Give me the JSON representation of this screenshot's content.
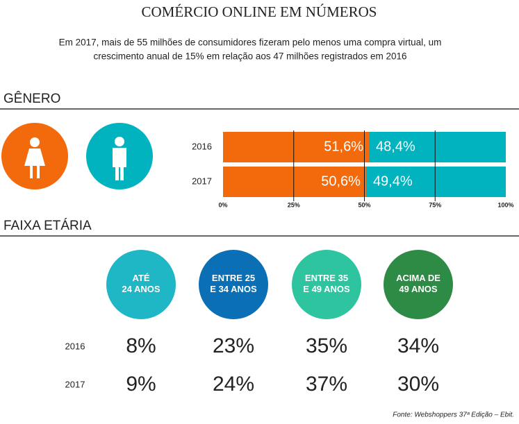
{
  "header": {
    "title": "COMÉRCIO ONLINE EM NÚMEROS",
    "subtitle": [
      "Em 2017, mais de 55 milhões de consumidores fizeram pelo menos uma compra virtual, um",
      "crescimento anual de 15% em relação aos 47 milhões registrados em 2016"
    ]
  },
  "sections": [
    "GÊNERO",
    "FAIXA ETÁRIA"
  ],
  "chart_data": {
    "type": "bar",
    "orientation": "horizontal",
    "stacked": true,
    "categories": [
      "2016",
      "2017"
    ],
    "series": [
      {
        "color": "#f26a0c",
        "values": [
          51.6,
          50.6
        ],
        "value_labels": [
          "51,6%",
          "50,6%"
        ]
      },
      {
        "color": "#00b3bf",
        "values": [
          48.4,
          49.4
        ],
        "value_labels": [
          "48,4%",
          "49,4%"
        ]
      }
    ],
    "xlim": [
      0,
      100
    ],
    "xticks": [
      {
        "value": 0,
        "label": "0%"
      },
      {
        "value": 25,
        "label": "25%"
      },
      {
        "value": 50,
        "label": "50%"
      },
      {
        "value": 75,
        "label": "75%"
      },
      {
        "value": 100,
        "label": "100%"
      }
    ],
    "grid": true
  },
  "table": {
    "columns": [
      {
        "lines": [
          "ATÉ",
          "24 ANOS"
        ],
        "color": "#1fb6c6"
      },
      {
        "lines": [
          "ENTRE 25",
          "E 34 ANOS"
        ],
        "color": "#0a6fb5"
      },
      {
        "lines": [
          "ENTRE 35",
          "E 49 ANOS"
        ],
        "color": "#2ec4a0"
      },
      {
        "lines": [
          "ACIMA DE",
          "49 ANOS"
        ],
        "color": "#2e8b45"
      }
    ],
    "rows": [
      {
        "label": "2016",
        "cells": [
          "8%",
          "23%",
          "35%",
          "34%"
        ]
      },
      {
        "label": "2017",
        "cells": [
          "9%",
          "24%",
          "37%",
          "30%"
        ]
      }
    ]
  },
  "source": "Fonte: Webshoppers 37ª Edição – Ebit."
}
